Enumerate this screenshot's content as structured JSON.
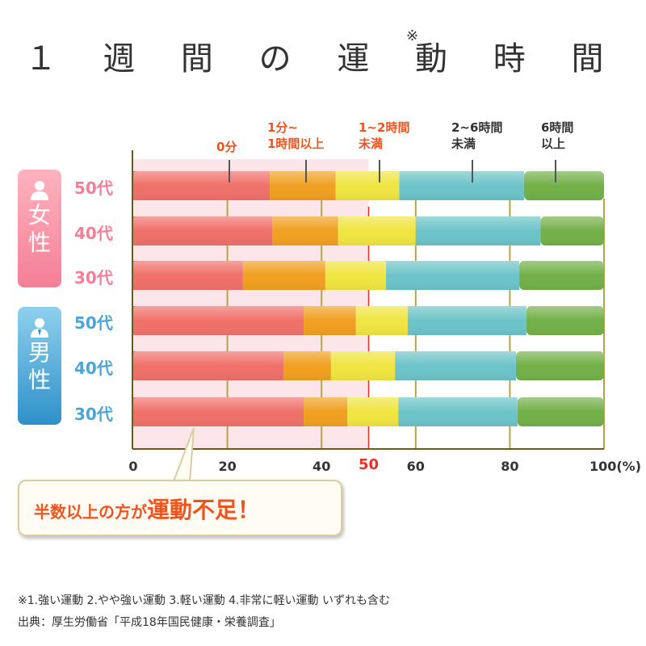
{
  "title": "１ 週 間 の 運 動 時 間",
  "title_note": "※",
  "groups": [
    {
      "label": "女性",
      "icon": "person-female-icon",
      "color": "#f47f96"
    },
    {
      "label": "男性",
      "icon": "person-male-icon",
      "color": "#2e90c8"
    }
  ],
  "chart_data": {
    "type": "bar",
    "orientation": "horizontal",
    "stacked": true,
    "categories": [
      "50代",
      "40代",
      "30代",
      "50代",
      "40代",
      "30代"
    ],
    "category_groups": [
      "女性",
      "女性",
      "女性",
      "男性",
      "男性",
      "男性"
    ],
    "series": [
      {
        "name": "0分",
        "color": "#f0706a",
        "values": [
          29,
          29.5,
          23.3,
          36.2,
          31.9,
          36.2
        ]
      },
      {
        "name": "1分~1時間以上",
        "color": "#f0a020",
        "values": [
          14,
          14,
          17.5,
          11.1,
          10.1,
          9.3
        ]
      },
      {
        "name": "1~2時間未満",
        "color": "#f0e540",
        "values": [
          13.5,
          16.5,
          12.9,
          11,
          13.6,
          10.8
        ]
      },
      {
        "name": "2~6時間未満",
        "color": "#6cc4c8",
        "values": [
          26.5,
          26.5,
          28.3,
          25.2,
          25.7,
          25.3
        ]
      },
      {
        "name": "6時間以上",
        "color": "#72b048",
        "values": [
          17,
          13.5,
          18,
          16.5,
          18.7,
          18.4
        ]
      }
    ],
    "legend_lines": [
      [
        "0分"
      ],
      [
        "1分~",
        "1時間以上"
      ],
      [
        "1~2時間",
        "未満"
      ],
      [
        "2~6時間",
        "未満"
      ],
      [
        "6時間",
        "以上"
      ]
    ],
    "legend_colors": [
      "#f0541e",
      "#f0541e",
      "#f0541e",
      "#333333",
      "#333333"
    ],
    "xlim": [
      0,
      100
    ],
    "xticks": [
      "0",
      "20",
      "40",
      "50",
      "60",
      "80",
      "100(%)"
    ],
    "xtick_values": [
      0,
      20,
      40,
      50,
      60,
      80,
      100
    ],
    "highlight_value": 50,
    "highlight_color": "#e8312a",
    "grid": true,
    "callout": {
      "text": "半数以上の方が",
      "emphasis": "運動不足！"
    }
  },
  "footnotes": [
    "※1.強い運動 2.やや強い運動 3.軽い運動 4.非常に軽い運動 いずれも含む",
    "出典：厚生労働省「平成18年国民健康・栄養調査」"
  ]
}
